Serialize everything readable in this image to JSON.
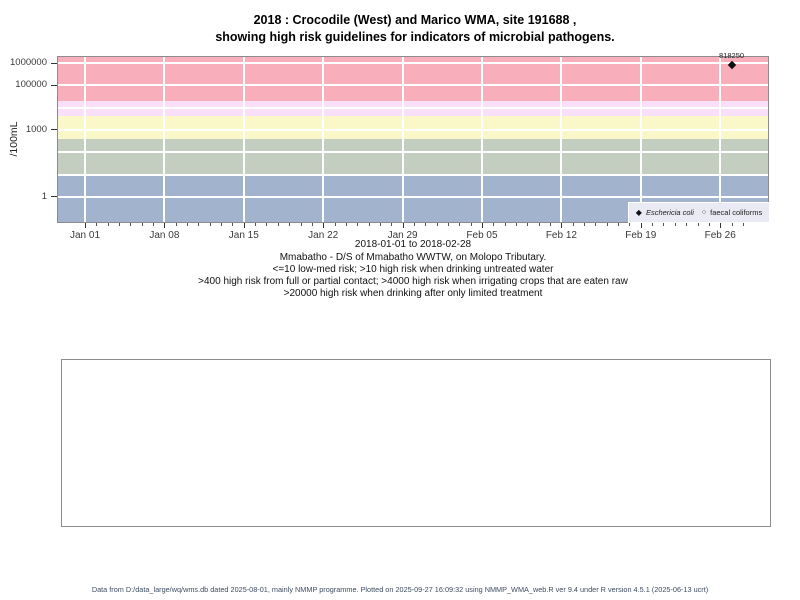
{
  "title": {
    "line1": "2018 : Crocodile (West) and Marico WMA, site 191688 ,",
    "line2": "showing high risk guidelines for indicators of microbial pathogens."
  },
  "chart_data": {
    "type": "scatter",
    "title": "2018 : Crocodile (West) and Marico WMA, site 191688 , showing high risk guidelines for indicators of microbial pathogens.",
    "xlabel": "2018-01-01 to 2018-02-28",
    "ylabel": "/100mL",
    "y_scale": "log10",
    "grid": true,
    "gridline_color": "#FFFFFF",
    "x_range_days": [
      0,
      58
    ],
    "x_ticks": [
      {
        "label": "Jan 01",
        "day": 0
      },
      {
        "label": "Jan 08",
        "day": 7
      },
      {
        "label": "Jan 15",
        "day": 14
      },
      {
        "label": "Jan 22",
        "day": 21
      },
      {
        "label": "Jan 29",
        "day": 28
      },
      {
        "label": "Feb 05",
        "day": 35
      },
      {
        "label": "Feb 12",
        "day": 42
      },
      {
        "label": "Feb 19",
        "day": 49
      },
      {
        "label": "Feb 26",
        "day": 56
      }
    ],
    "x_minor_tick_every_days": 1,
    "y_ticks": [
      {
        "label": "1",
        "value": 1
      },
      {
        "label": "1000",
        "value": 1000
      },
      {
        "label": "100000",
        "value": 100000
      },
      {
        "label": "1000000",
        "value": 1000000
      }
    ],
    "y_gridline_values": [
      1,
      10,
      100,
      1000,
      10000,
      100000,
      1000000
    ],
    "legend_position": "bottom-right",
    "series": [
      {
        "name": "Eschericia coli",
        "marker": "filled-diamond",
        "color": "#111111",
        "points": [
          {
            "date": "2018-02-27",
            "day": 57,
            "value": 818250,
            "label": "818250"
          }
        ]
      },
      {
        "name": "faecal coliforms",
        "marker": "open-circle",
        "color": "#111111",
        "points": []
      }
    ],
    "risk_bands": [
      {
        "label": "<=10 low-med risk",
        "min": null,
        "max": 10,
        "color": "#A2B3CE"
      },
      {
        "label": ">10 high risk when drinking untreated water",
        "min": 10,
        "max": 400,
        "color": "#C3CDC0"
      },
      {
        "label": ">400 high risk from full or partial contact",
        "min": 400,
        "max": 4000,
        "color": "#FAF8C9"
      },
      {
        "label": ">4000 high risk when irrigating crops that are eaten raw",
        "min": 4000,
        "max": 20000,
        "color": "#F9DFF7"
      },
      {
        "label": ">20000 high risk when drinking after only limited treatment",
        "min": 20000,
        "max": null,
        "color": "#F9AEBC"
      }
    ]
  },
  "captions": [
    "Mmabatho - D/S of Mmabatho WWTW, on Molopo Tributary.",
    "<=10 low-med risk; >10 high risk when drinking untreated water",
    ">400 high risk from full or partial contact; >4000 high risk when irrigating crops that are eaten raw",
    ">20000 high risk when drinking after only limited treatment"
  ],
  "footer": "Data from D:/data_large/wq/wms.db dated 2025-08-01, mainly NMMP programme. Plotted on 2025-09-27 16:09:32 using NMMP_WMA_web.R ver 9.4 under R version 4.5.1 (2025-06-13 ucrt)"
}
